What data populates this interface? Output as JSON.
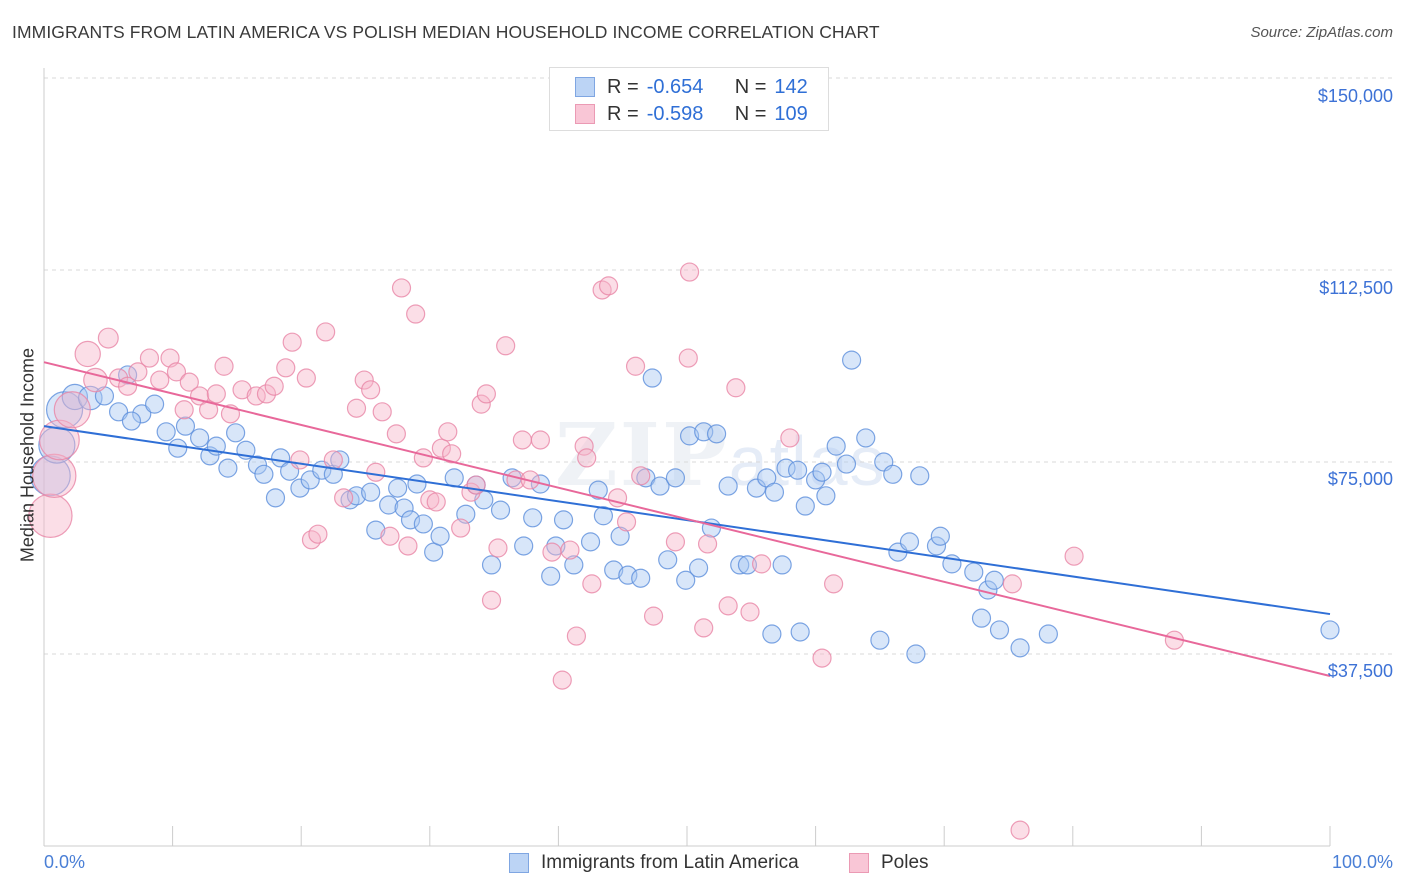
{
  "title": "IMMIGRANTS FROM LATIN AMERICA VS POLISH MEDIAN HOUSEHOLD INCOME CORRELATION CHART",
  "source": "Source: ZipAtlas.com",
  "watermark": {
    "zip": "ZIP",
    "atlas": "atlas"
  },
  "legend": {
    "rows": [
      {
        "r_label": "R =",
        "r_value": "-0.654",
        "n_label": "N =",
        "n_value": "142"
      },
      {
        "r_label": "R =",
        "r_value": "-0.598",
        "n_label": "N =",
        "n_value": "109"
      }
    ]
  },
  "colors": {
    "blue_fill": "#a9c7f1",
    "blue_stroke": "#5d8fdc",
    "blue_line": "#2f6fd6",
    "pink_fill": "#f7b6ca",
    "pink_stroke": "#e886a6",
    "pink_line": "#e8689a",
    "grid": "#d9d9d9",
    "axis_label": "#3d72d6"
  },
  "chart_data": {
    "type": "scatter",
    "title": "IMMIGRANTS FROM LATIN AMERICA VS POLISH MEDIAN HOUSEHOLD INCOME CORRELATION CHART",
    "xlabel": "",
    "ylabel": "Median Household Income",
    "xlim": [
      0,
      100
    ],
    "ylim": [
      0,
      150000
    ],
    "x_tick_labels": [
      "0.0%",
      "100.0%"
    ],
    "y_ticks": [
      37500,
      75000,
      112500,
      150000
    ],
    "y_tick_labels": [
      "$37,500",
      "$75,000",
      "$112,500",
      "$150,000"
    ],
    "grid": true,
    "legend_placement": "top-center",
    "bottom_legend": [
      "Immigrants from Latin America",
      "Poles"
    ],
    "series": [
      {
        "name": "Immigrants from Latin America",
        "r": -0.654,
        "n": 142,
        "trend": {
          "y_at_0": 82000,
          "y_at_100": 45300
        },
        "points": [
          [
            0.5,
            72.3,
            2.2
          ],
          [
            1,
            78.3,
            2
          ],
          [
            1.6,
            85.2,
            2
          ],
          [
            2.4,
            87.7,
            1.4
          ],
          [
            3.6,
            87.5,
            1.3
          ],
          [
            4.7,
            87.9,
            1
          ],
          [
            5.8,
            84.8,
            1
          ],
          [
            6.5,
            92,
            1
          ],
          [
            7.6,
            84.4,
            1
          ],
          [
            6.8,
            83,
            1
          ],
          [
            8.6,
            86.3,
            1
          ],
          [
            9.5,
            80.9,
            1
          ],
          [
            10.4,
            77.7,
            1
          ],
          [
            11,
            82,
            1
          ],
          [
            12.1,
            79.7,
            1
          ],
          [
            12.9,
            76.2,
            1
          ],
          [
            13.4,
            78.1,
            1
          ],
          [
            14.3,
            73.8,
            1
          ],
          [
            14.9,
            80.7,
            1
          ],
          [
            15.7,
            77.3,
            1
          ],
          [
            16.6,
            74.4,
            1
          ],
          [
            17.1,
            72.6,
            1
          ],
          [
            18,
            68,
            1
          ],
          [
            18.4,
            75.8,
            1
          ],
          [
            19.1,
            73.2,
            1
          ],
          [
            19.9,
            69.9,
            1
          ],
          [
            20.7,
            71.5,
            1
          ],
          [
            21.6,
            73.4,
            1
          ],
          [
            22.5,
            72.6,
            1
          ],
          [
            23,
            75.4,
            1
          ],
          [
            23.8,
            67.6,
            1
          ],
          [
            24.3,
            68.4,
            1
          ],
          [
            25.4,
            69.1,
            1
          ],
          [
            25.8,
            61.7,
            1
          ],
          [
            26.8,
            66.6,
            1
          ],
          [
            27.5,
            69.9,
            1
          ],
          [
            28,
            66,
            1
          ],
          [
            28.5,
            63.7,
            1
          ],
          [
            29,
            70.7,
            1
          ],
          [
            29.5,
            62.9,
            1
          ],
          [
            30.3,
            57.4,
            1
          ],
          [
            30.8,
            60.5,
            1
          ],
          [
            31.9,
            71.9,
            1
          ],
          [
            32.8,
            64.8,
            1
          ],
          [
            33.6,
            70.5,
            1
          ],
          [
            34.2,
            67.6,
            1
          ],
          [
            34.8,
            54.9,
            1
          ],
          [
            35.5,
            65.6,
            1
          ],
          [
            36.4,
            71.9,
            1
          ],
          [
            37.3,
            58.6,
            1
          ],
          [
            38,
            64.1,
            1
          ],
          [
            38.6,
            70.7,
            1
          ],
          [
            39.4,
            52.7,
            1
          ],
          [
            39.8,
            58.6,
            1
          ],
          [
            40.4,
            63.7,
            1
          ],
          [
            41.2,
            54.9,
            1
          ],
          [
            42.5,
            59.4,
            1
          ],
          [
            43.1,
            69.5,
            1
          ],
          [
            43.5,
            64.5,
            1
          ],
          [
            44.3,
            53.9,
            1
          ],
          [
            44.8,
            60.5,
            1
          ],
          [
            45.4,
            52.9,
            1
          ],
          [
            46.4,
            52.3,
            1
          ],
          [
            46.8,
            71.9,
            1
          ],
          [
            47.3,
            91.4,
            1
          ],
          [
            47.9,
            70.3,
            1
          ],
          [
            48.5,
            55.9,
            1
          ],
          [
            49.1,
            71.9,
            1
          ],
          [
            49.9,
            51.9,
            1
          ],
          [
            50.2,
            80.1,
            1
          ],
          [
            50.9,
            54.3,
            1
          ],
          [
            51.3,
            80.9,
            1
          ],
          [
            51.9,
            62.1,
            1
          ],
          [
            52.3,
            80.5,
            1
          ],
          [
            53.2,
            70.3,
            1
          ],
          [
            54.1,
            54.9,
            1
          ],
          [
            54.7,
            54.9,
            1
          ],
          [
            55.4,
            69.9,
            1
          ],
          [
            56.2,
            71.9,
            1
          ],
          [
            56.6,
            41.4,
            1
          ],
          [
            56.8,
            69.1,
            1
          ],
          [
            57.4,
            54.9,
            1
          ],
          [
            57.7,
            73.8,
            1
          ],
          [
            58.6,
            73.4,
            1
          ],
          [
            58.8,
            41.8,
            1
          ],
          [
            59.2,
            66.4,
            1
          ],
          [
            60,
            71.5,
            1
          ],
          [
            60.5,
            73,
            1
          ],
          [
            60.8,
            68.4,
            1
          ],
          [
            61.6,
            78.1,
            1
          ],
          [
            62.4,
            74.6,
            1
          ],
          [
            62.8,
            94.9,
            1
          ],
          [
            63.9,
            79.7,
            1
          ],
          [
            65,
            40.2,
            1
          ],
          [
            65.3,
            75,
            1
          ],
          [
            66,
            72.6,
            1
          ],
          [
            66.4,
            57.4,
            1
          ],
          [
            67.3,
            59.4,
            1
          ],
          [
            67.8,
            37.5,
            1
          ],
          [
            68.1,
            72.3,
            1
          ],
          [
            69.4,
            58.6,
            1
          ],
          [
            69.7,
            60.5,
            1
          ],
          [
            70.6,
            55.1,
            1
          ],
          [
            72.3,
            53.5,
            1
          ],
          [
            72.9,
            44.5,
            1
          ],
          [
            73.4,
            50,
            1
          ],
          [
            73.9,
            51.9,
            1
          ],
          [
            74.3,
            42.2,
            1
          ],
          [
            75.9,
            38.7,
            1
          ],
          [
            78.1,
            41.4,
            1
          ],
          [
            100,
            42.2,
            1
          ]
        ]
      },
      {
        "name": "Poles",
        "r": -0.598,
        "n": 109,
        "trend": {
          "y_at_0": 94500,
          "y_at_100": 33200
        },
        "points": [
          [
            0.5,
            64.5,
            2.4
          ],
          [
            0.8,
            72.3,
            2.4
          ],
          [
            1.2,
            79.3,
            2.2
          ],
          [
            2.2,
            85.2,
            2
          ],
          [
            3.4,
            96.1,
            1.4
          ],
          [
            4,
            91,
            1.3
          ],
          [
            5,
            99.2,
            1.1
          ],
          [
            5.8,
            91.4,
            1
          ],
          [
            6.5,
            89.8,
            1
          ],
          [
            7.3,
            92.6,
            1
          ],
          [
            8.2,
            95.3,
            1
          ],
          [
            9,
            91,
            1
          ],
          [
            9.8,
            95.3,
            1
          ],
          [
            10.3,
            92.6,
            1
          ],
          [
            10.9,
            85.2,
            1
          ],
          [
            11.3,
            90.6,
            1
          ],
          [
            12.1,
            87.9,
            1
          ],
          [
            12.8,
            85.2,
            1
          ],
          [
            13.4,
            88.3,
            1
          ],
          [
            14,
            93.7,
            1
          ],
          [
            14.5,
            84.4,
            1
          ],
          [
            15.4,
            89.1,
            1
          ],
          [
            16.5,
            87.9,
            1
          ],
          [
            17.3,
            88.3,
            1
          ],
          [
            17.9,
            89.8,
            1
          ],
          [
            18.8,
            93.4,
            1
          ],
          [
            19.3,
            98.4,
            1
          ],
          [
            19.9,
            75.4,
            1
          ],
          [
            20.4,
            91.4,
            1
          ],
          [
            20.8,
            59.8,
            1
          ],
          [
            21.3,
            60.9,
            1
          ],
          [
            21.9,
            100.4,
            1
          ],
          [
            22.5,
            75.4,
            1
          ],
          [
            23.3,
            68,
            1
          ],
          [
            24.3,
            85.5,
            1
          ],
          [
            24.9,
            91,
            1
          ],
          [
            25.4,
            89.1,
            1
          ],
          [
            25.8,
            73,
            1
          ],
          [
            26.3,
            84.8,
            1
          ],
          [
            26.9,
            60.5,
            1
          ],
          [
            27.4,
            80.5,
            1
          ],
          [
            27.8,
            109,
            1
          ],
          [
            28.3,
            58.6,
            1
          ],
          [
            28.9,
            103.9,
            1
          ],
          [
            29.5,
            75.8,
            1
          ],
          [
            30,
            67.6,
            1
          ],
          [
            30.5,
            67.2,
            1
          ],
          [
            30.9,
            77.7,
            1
          ],
          [
            31.4,
            80.9,
            1
          ],
          [
            31.7,
            76.6,
            1
          ],
          [
            32.4,
            62.1,
            1
          ],
          [
            33.2,
            69.1,
            1
          ],
          [
            33.6,
            70.5,
            1
          ],
          [
            34,
            86.3,
            1
          ],
          [
            34.4,
            88.3,
            1
          ],
          [
            34.8,
            48,
            1
          ],
          [
            35.3,
            58.2,
            1
          ],
          [
            35.9,
            97.7,
            1
          ],
          [
            36.7,
            71.5,
            1
          ],
          [
            37.2,
            79.3,
            1
          ],
          [
            37.8,
            71.5,
            1
          ],
          [
            38.6,
            79.3,
            1
          ],
          [
            39.5,
            57.4,
            1
          ],
          [
            40.3,
            32.4,
            1
          ],
          [
            40.9,
            57.8,
            1
          ],
          [
            41.4,
            41,
            1
          ],
          [
            42,
            78.1,
            1
          ],
          [
            42.2,
            75.8,
            1
          ],
          [
            42.6,
            51.2,
            1
          ],
          [
            43.4,
            108.6,
            1
          ],
          [
            43.9,
            109.4,
            1
          ],
          [
            44.6,
            68,
            1
          ],
          [
            45.3,
            63.3,
            1
          ],
          [
            46,
            93.7,
            1
          ],
          [
            46.4,
            72.3,
            1
          ],
          [
            47.4,
            44.9,
            1
          ],
          [
            49.1,
            59.4,
            1
          ],
          [
            50.1,
            95.3,
            1
          ],
          [
            50.2,
            112.1,
            1
          ],
          [
            51.3,
            42.6,
            1
          ],
          [
            51.6,
            59,
            1
          ],
          [
            53.2,
            46.9,
            1
          ],
          [
            53.8,
            89.5,
            1
          ],
          [
            54.9,
            45.7,
            1
          ],
          [
            55.8,
            55.1,
            1
          ],
          [
            58,
            79.7,
            1
          ],
          [
            60.5,
            36.7,
            1
          ],
          [
            61.4,
            51.2,
            1
          ],
          [
            75.3,
            51.2,
            1
          ],
          [
            75.9,
            3.1,
            1
          ],
          [
            80.1,
            56.6,
            1
          ],
          [
            87.9,
            40.2,
            1
          ]
        ]
      }
    ]
  }
}
